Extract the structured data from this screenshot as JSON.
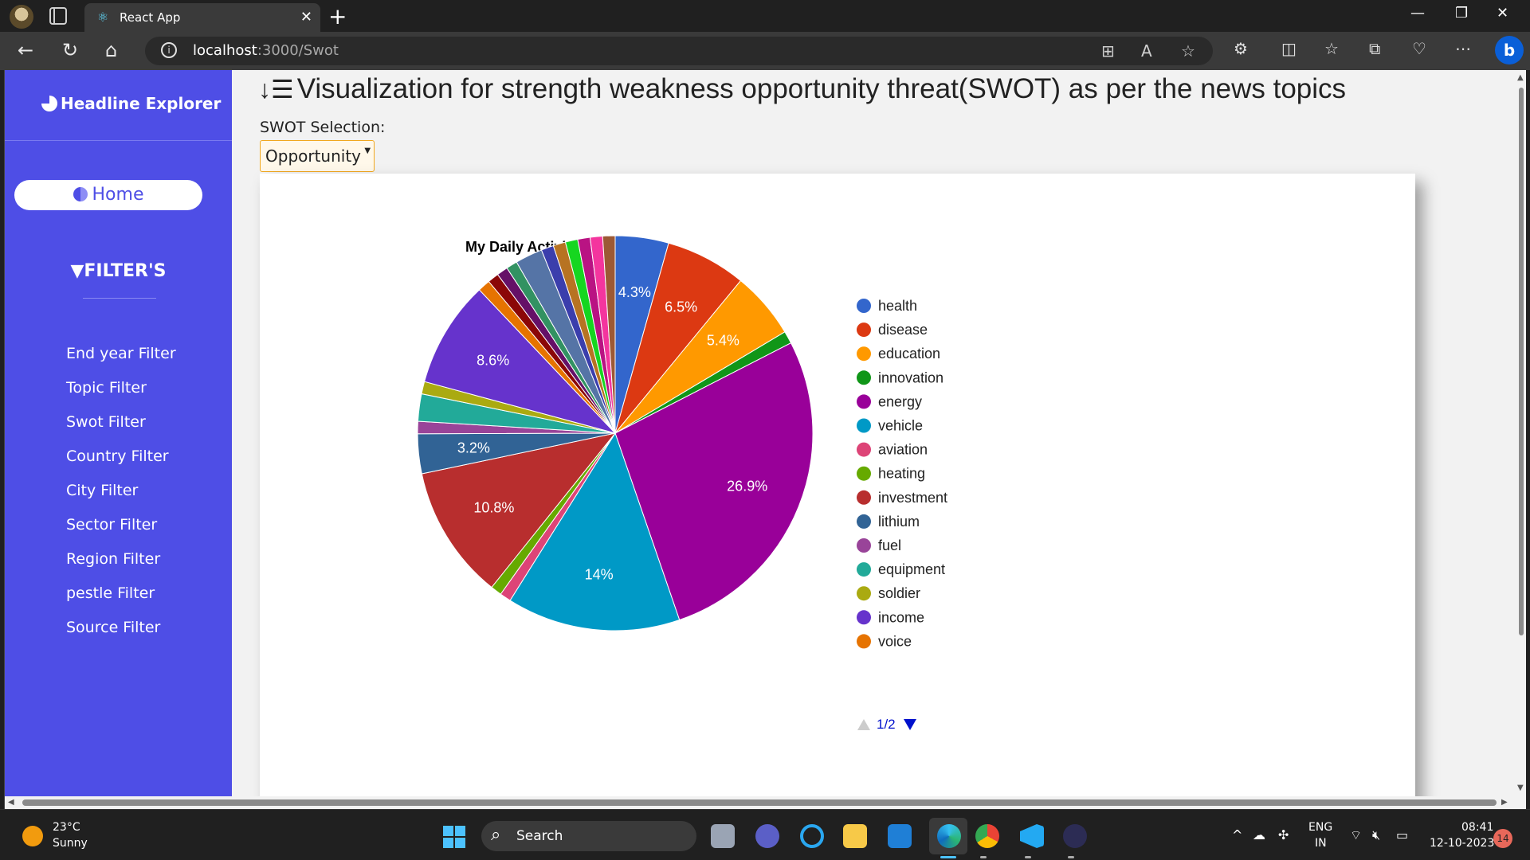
{
  "browser": {
    "tab_title": "React App",
    "url_host": "localhost",
    "url_path": ":3000/Swot",
    "newtab_glyph": "+",
    "close_glyph": "✕"
  },
  "sidebar": {
    "brand": "Headline Explorer",
    "home_label": "Home",
    "filters_title": "FILTER'S",
    "filters": [
      "End year Filter",
      "Topic Filter",
      "Swot Filter",
      "Country Filter",
      "City Filter",
      "Sector Filter",
      "Region Filter",
      "pestle Filter",
      "Source Filter"
    ]
  },
  "main": {
    "title": "Visualization for strength weakness opportunity threat(SWOT) as per the news topics",
    "swot_label": "SWOT Selection:",
    "swot_selected": "Opportunity"
  },
  "chart_data": {
    "type": "pie",
    "title": "My Daily Activities",
    "legend_position": "right",
    "legend_page": "1/2",
    "slices": [
      {
        "label": "health",
        "value": 4.3,
        "color": "#3366cc",
        "shown_label": "4.3%"
      },
      {
        "label": "disease",
        "value": 6.5,
        "color": "#dc3912",
        "shown_label": "6.5%"
      },
      {
        "label": "education",
        "value": 5.4,
        "color": "#ff9900",
        "shown_label": "5.4%"
      },
      {
        "label": "innovation",
        "value": 1.0,
        "color": "#109618",
        "shown_label": ""
      },
      {
        "label": "energy",
        "value": 26.9,
        "color": "#990099",
        "shown_label": "26.9%"
      },
      {
        "label": "vehicle",
        "value": 14.0,
        "color": "#0099c6",
        "shown_label": "14%"
      },
      {
        "label": "aviation",
        "value": 0.9,
        "color": "#dd4477",
        "shown_label": ""
      },
      {
        "label": "heating",
        "value": 0.9,
        "color": "#66aa00",
        "shown_label": ""
      },
      {
        "label": "investment",
        "value": 10.8,
        "color": "#b82e2e",
        "shown_label": "10.8%"
      },
      {
        "label": "lithium",
        "value": 3.2,
        "color": "#316395",
        "shown_label": "3.2%"
      },
      {
        "label": "fuel",
        "value": 1.0,
        "color": "#994499",
        "shown_label": ""
      },
      {
        "label": "equipment",
        "value": 2.2,
        "color": "#22aa99",
        "shown_label": ""
      },
      {
        "label": "soldier",
        "value": 1.0,
        "color": "#aaaa11",
        "shown_label": ""
      },
      {
        "label": "income",
        "value": 8.6,
        "color": "#6633cc",
        "shown_label": "8.6%"
      },
      {
        "label": "voice",
        "value": 1.0,
        "color": "#e67300",
        "shown_label": ""
      },
      {
        "label": "",
        "value": 0.9,
        "color": "#8b0707",
        "shown_label": ""
      },
      {
        "label": "",
        "value": 0.9,
        "color": "#651067",
        "shown_label": ""
      },
      {
        "label": "",
        "value": 0.9,
        "color": "#329262",
        "shown_label": ""
      },
      {
        "label": "",
        "value": 2.2,
        "color": "#5574a6",
        "shown_label": ""
      },
      {
        "label": "",
        "value": 1.0,
        "color": "#3b3eac",
        "shown_label": ""
      },
      {
        "label": "",
        "value": 1.0,
        "color": "#b77322",
        "shown_label": ""
      },
      {
        "label": "",
        "value": 1.0,
        "color": "#16d620",
        "shown_label": ""
      },
      {
        "label": "",
        "value": 1.0,
        "color": "#b91383",
        "shown_label": ""
      },
      {
        "label": "",
        "value": 1.0,
        "color": "#f4359e",
        "shown_label": ""
      },
      {
        "label": "",
        "value": 1.0,
        "color": "#9c5935",
        "shown_label": ""
      }
    ]
  },
  "taskbar": {
    "temperature": "23°C",
    "weather": "Sunny",
    "search_label": "Search",
    "lang_top": "ENG",
    "lang_bottom": "IN",
    "time": "08:41",
    "date": "12-10-2023",
    "notifications": "14"
  }
}
